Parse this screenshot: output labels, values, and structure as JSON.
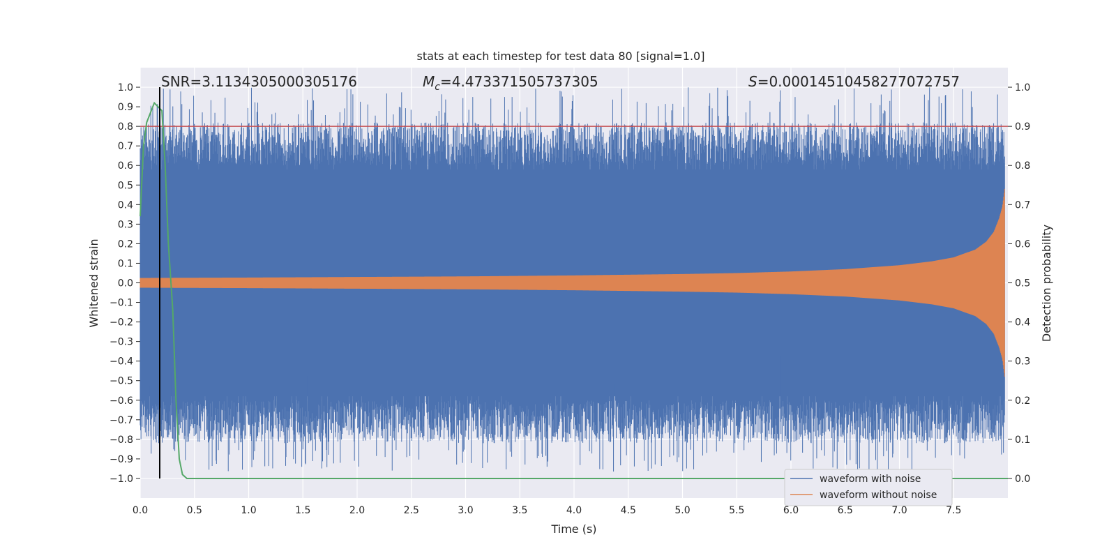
{
  "chart_data": {
    "type": "line",
    "title": "stats at each timestep for test data 80 [signal=1.0]",
    "xlabel": "Time (s)",
    "ylabel": "Whitened strain",
    "y2label": "Detection probability",
    "xlim": [
      0.0,
      8.0
    ],
    "ylim": [
      -1.1,
      1.1
    ],
    "y2lim": [
      -0.05,
      1.05
    ],
    "x_ticks": [
      "0.0",
      "0.5",
      "1.0",
      "1.5",
      "2.0",
      "2.5",
      "3.0",
      "3.5",
      "4.0",
      "4.5",
      "5.0",
      "5.5",
      "6.0",
      "6.5",
      "7.0",
      "7.5"
    ],
    "y_ticks": [
      "1.0",
      "0.9",
      "0.8",
      "0.7",
      "0.6",
      "0.5",
      "0.4",
      "0.3",
      "0.2",
      "0.1",
      "0.0",
      "−0.1",
      "−0.2",
      "−0.3",
      "−0.4",
      "−0.5",
      "−0.6",
      "−0.7",
      "−0.8",
      "−0.9",
      "−1.0"
    ],
    "y2_ticks": [
      "1.0",
      "0.9",
      "0.8",
      "0.7",
      "0.6",
      "0.5",
      "0.4",
      "0.3",
      "0.2",
      "0.1",
      "0.0"
    ],
    "grid": true,
    "legend_position": "bottom-right",
    "annotations": {
      "snr": "SNR=3.1134305000305176",
      "mc_symbol": "M",
      "mc_subscript": "c",
      "mc_value": "=4.473371505737305",
      "s_symbol": "S",
      "s_value": "=0.00014510458277072757"
    },
    "series": [
      {
        "name": "waveform with noise",
        "color": "#4c72b0",
        "axis": "left",
        "description_of_extent": "dense noise filling roughly -0.8 to 0.8, peaks near ±1.0",
        "envelope": {
          "x": [
            0.0,
            8.0
          ],
          "upper": [
            0.8,
            0.8
          ],
          "lower": [
            -0.8,
            -0.8
          ],
          "peak": 1.0
        }
      },
      {
        "name": "waveform without noise",
        "color": "#dd8452",
        "axis": "left",
        "envelope": {
          "x": [
            0.0,
            1.0,
            2.0,
            3.0,
            4.0,
            5.0,
            5.5,
            6.0,
            6.5,
            7.0,
            7.3,
            7.5,
            7.7,
            7.8,
            7.87,
            7.92,
            7.95,
            7.97
          ],
          "amp": [
            0.025,
            0.027,
            0.03,
            0.033,
            0.038,
            0.045,
            0.05,
            0.058,
            0.07,
            0.09,
            0.11,
            0.13,
            0.17,
            0.21,
            0.26,
            0.33,
            0.39,
            0.48
          ]
        }
      },
      {
        "name": "detection probability",
        "color": "#55a868",
        "axis": "right",
        "x": [
          0.0,
          0.03,
          0.06,
          0.13,
          0.2,
          0.23,
          0.26,
          0.3,
          0.33,
          0.36,
          0.39,
          0.43,
          1.0,
          8.0
        ],
        "y": [
          0.67,
          0.85,
          0.91,
          0.96,
          0.94,
          0.8,
          0.6,
          0.43,
          0.2,
          0.05,
          0.01,
          0.0,
          0.0,
          0.0
        ]
      }
    ],
    "threshold_line": {
      "color": "#c44e52",
      "value_right_axis": 0.9
    },
    "marker_line": {
      "color": "#000000",
      "x": 0.18
    }
  }
}
